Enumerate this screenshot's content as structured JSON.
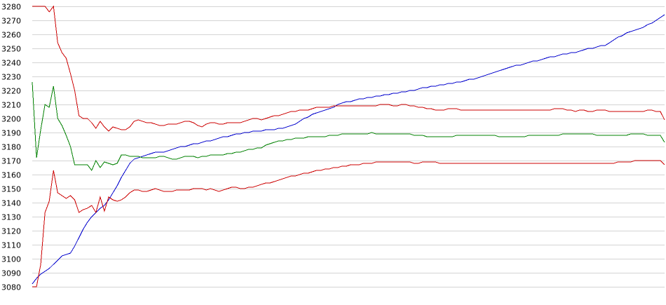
{
  "chart_data": {
    "type": "line",
    "title": "",
    "xlabel": "",
    "ylabel": "",
    "grid": "horizontal",
    "legend": "none",
    "ylim": [
      3080,
      3280
    ],
    "y_ticks": [
      3080,
      3090,
      3100,
      3110,
      3120,
      3130,
      3140,
      3150,
      3160,
      3170,
      3180,
      3190,
      3200,
      3210,
      3220,
      3230,
      3240,
      3250,
      3260,
      3270,
      3280
    ],
    "x": [
      1,
      2,
      3,
      4,
      5,
      6,
      7,
      8,
      9,
      10,
      11,
      12,
      13,
      14,
      15,
      16,
      17,
      18,
      19,
      20,
      21,
      22,
      23,
      24,
      25,
      26,
      27,
      28,
      29,
      30,
      31,
      32,
      33,
      34,
      35,
      36,
      37,
      38,
      39,
      40,
      41,
      42,
      43,
      44,
      45,
      46,
      47,
      48,
      49,
      50,
      51,
      52,
      53,
      54,
      55,
      56,
      57,
      58,
      59,
      60,
      61,
      62,
      63,
      64,
      65,
      66,
      67,
      68,
      69,
      70,
      71,
      72,
      73,
      74,
      75,
      76,
      77,
      78,
      79,
      80,
      81,
      82,
      83,
      84,
      85,
      86,
      87,
      88,
      89,
      90,
      91,
      92,
      93,
      94,
      95,
      96,
      97,
      98,
      99,
      100,
      101,
      102,
      103,
      104,
      105,
      106,
      107,
      108,
      109,
      110,
      111,
      112,
      113,
      114,
      115,
      116,
      117,
      118,
      119,
      120,
      121,
      122,
      123,
      124,
      125,
      126,
      127,
      128,
      129,
      130,
      131,
      132,
      133,
      134,
      135,
      136,
      137,
      138,
      139,
      140,
      141,
      142,
      143,
      144,
      145,
      146,
      147,
      148,
      149,
      150
    ],
    "series": [
      {
        "color": "#0000cc",
        "values": [
          3082,
          3086,
          3089,
          3091,
          3093,
          3096,
          3099,
          3102,
          3103,
          3104,
          3109,
          3115,
          3121,
          3126,
          3130,
          3133,
          3136,
          3138,
          3142,
          3147,
          3152,
          3158,
          3163,
          3168,
          3171,
          3172,
          3173,
          3174,
          3175,
          3176,
          3176,
          3176,
          3177,
          3178,
          3179,
          3180,
          3180,
          3181,
          3182,
          3182,
          3183,
          3184,
          3184,
          3185,
          3186,
          3187,
          3187,
          3188,
          3189,
          3189,
          3190,
          3190,
          3191,
          3191,
          3191,
          3192,
          3192,
          3192,
          3193,
          3193,
          3194,
          3195,
          3196,
          3198,
          3200,
          3201,
          3203,
          3204,
          3205,
          3206,
          3207,
          3208,
          3210,
          3211,
          3212,
          3212,
          3213,
          3214,
          3214,
          3215,
          3215,
          3216,
          3216,
          3217,
          3217,
          3218,
          3218,
          3219,
          3219,
          3220,
          3220,
          3221,
          3222,
          3222,
          3223,
          3223,
          3224,
          3224,
          3225,
          3225,
          3226,
          3226,
          3227,
          3228,
          3228,
          3229,
          3230,
          3231,
          3232,
          3233,
          3234,
          3235,
          3236,
          3237,
          3238,
          3238,
          3239,
          3240,
          3241,
          3241,
          3242,
          3243,
          3244,
          3244,
          3245,
          3246,
          3246,
          3247,
          3247,
          3248,
          3249,
          3250,
          3250,
          3251,
          3252,
          3252,
          3254,
          3256,
          3258,
          3259,
          3261,
          3262,
          3263,
          3264,
          3265,
          3267,
          3268,
          3270,
          3272,
          3274
        ]
      },
      {
        "color": "#cc0000",
        "values": [
          3280,
          3280,
          3280,
          3280,
          3276,
          3280,
          3254,
          3247,
          3243,
          3232,
          3220,
          3202,
          3200,
          3200,
          3197,
          3193,
          3198,
          3194,
          3191,
          3194,
          3193,
          3192,
          3192,
          3194,
          3198,
          3199,
          3198,
          3197,
          3197,
          3196,
          3195,
          3195,
          3196,
          3196,
          3196,
          3197,
          3198,
          3198,
          3197,
          3195,
          3194,
          3196,
          3197,
          3197,
          3196,
          3196,
          3197,
          3197,
          3197,
          3197,
          3198,
          3199,
          3200,
          3200,
          3199,
          3200,
          3201,
          3202,
          3202,
          3203,
          3204,
          3205,
          3205,
          3206,
          3206,
          3206,
          3207,
          3208,
          3208,
          3208,
          3208,
          3209,
          3209,
          3209,
          3209,
          3209,
          3209,
          3209,
          3209,
          3209,
          3209,
          3209,
          3210,
          3210,
          3210,
          3209,
          3209,
          3210,
          3210,
          3209,
          3209,
          3208,
          3208,
          3207,
          3207,
          3206,
          3206,
          3206,
          3207,
          3207,
          3207,
          3206,
          3206,
          3206,
          3206,
          3206,
          3206,
          3206,
          3206,
          3206,
          3206,
          3206,
          3206,
          3206,
          3206,
          3206,
          3206,
          3206,
          3206,
          3206,
          3206,
          3206,
          3206,
          3207,
          3207,
          3207,
          3206,
          3206,
          3205,
          3206,
          3206,
          3205,
          3205,
          3206,
          3206,
          3206,
          3205,
          3205,
          3205,
          3205,
          3205,
          3205,
          3205,
          3205,
          3205,
          3206,
          3206,
          3205,
          3205,
          3199
        ]
      },
      {
        "color": "#008000",
        "values": [
          3226,
          3172,
          3192,
          3210,
          3208,
          3223,
          3200,
          3195,
          3188,
          3180,
          3167,
          3167,
          3167,
          3167,
          3163,
          3170,
          3165,
          3169,
          3168,
          3167,
          3168,
          3174,
          3174,
          3173,
          3173,
          3173,
          3172,
          3172,
          3172,
          3172,
          3173,
          3173,
          3172,
          3171,
          3171,
          3172,
          3173,
          3173,
          3173,
          3172,
          3173,
          3173,
          3174,
          3174,
          3174,
          3174,
          3175,
          3175,
          3176,
          3176,
          3177,
          3178,
          3178,
          3179,
          3179,
          3181,
          3182,
          3183,
          3184,
          3184,
          3185,
          3185,
          3186,
          3186,
          3186,
          3187,
          3187,
          3187,
          3187,
          3187,
          3188,
          3188,
          3188,
          3189,
          3189,
          3189,
          3189,
          3189,
          3189,
          3189,
          3190,
          3189,
          3189,
          3189,
          3189,
          3189,
          3189,
          3189,
          3189,
          3189,
          3188,
          3188,
          3188,
          3187,
          3187,
          3187,
          3187,
          3187,
          3187,
          3187,
          3188,
          3188,
          3188,
          3188,
          3188,
          3188,
          3188,
          3188,
          3188,
          3188,
          3187,
          3187,
          3187,
          3187,
          3187,
          3187,
          3187,
          3188,
          3188,
          3188,
          3188,
          3188,
          3188,
          3188,
          3188,
          3189,
          3189,
          3189,
          3189,
          3189,
          3189,
          3189,
          3189,
          3188,
          3188,
          3188,
          3188,
          3188,
          3188,
          3188,
          3188,
          3189,
          3189,
          3189,
          3189,
          3188,
          3188,
          3188,
          3188,
          3183
        ]
      },
      {
        "color": "#cc0000",
        "values": [
          3080,
          3080,
          3096,
          3133,
          3141,
          3163,
          3147,
          3145,
          3143,
          3145,
          3142,
          3133,
          3135,
          3136,
          3138,
          3133,
          3144,
          3134,
          3144,
          3142,
          3141,
          3142,
          3144,
          3147,
          3149,
          3149,
          3148,
          3148,
          3149,
          3150,
          3149,
          3148,
          3148,
          3148,
          3149,
          3149,
          3149,
          3149,
          3150,
          3150,
          3150,
          3149,
          3150,
          3149,
          3148,
          3149,
          3150,
          3151,
          3151,
          3150,
          3150,
          3151,
          3151,
          3152,
          3153,
          3154,
          3154,
          3155,
          3156,
          3157,
          3158,
          3159,
          3159,
          3160,
          3161,
          3161,
          3162,
          3163,
          3163,
          3164,
          3164,
          3165,
          3165,
          3166,
          3166,
          3167,
          3167,
          3167,
          3168,
          3168,
          3168,
          3169,
          3169,
          3169,
          3169,
          3169,
          3169,
          3169,
          3169,
          3169,
          3168,
          3168,
          3169,
          3169,
          3169,
          3169,
          3168,
          3168,
          3168,
          3168,
          3168,
          3168,
          3168,
          3168,
          3168,
          3168,
          3168,
          3168,
          3168,
          3168,
          3168,
          3168,
          3168,
          3168,
          3168,
          3168,
          3168,
          3168,
          3168,
          3168,
          3168,
          3168,
          3168,
          3168,
          3168,
          3168,
          3168,
          3168,
          3168,
          3168,
          3168,
          3168,
          3168,
          3168,
          3168,
          3168,
          3168,
          3168,
          3169,
          3169,
          3169,
          3169,
          3170,
          3170,
          3170,
          3170,
          3170,
          3170,
          3170,
          3167
        ]
      }
    ]
  }
}
